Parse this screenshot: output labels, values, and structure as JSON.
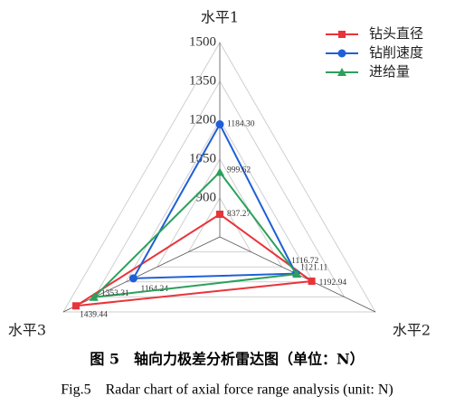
{
  "chart_data": {
    "type": "radar",
    "title": "图 5　轴向力极差分析雷达图（单位：N）",
    "subtitle": "Fig.5　Radar chart of axial force range analysis (unit: N)",
    "categories": [
      "水平1",
      "水平2",
      "水平3"
    ],
    "rlim": [
      750,
      1500
    ],
    "rticks": [
      900,
      1050,
      1200,
      1350,
      1500
    ],
    "series": [
      {
        "name": "钻头直径",
        "color": "#e8343a",
        "marker": "square",
        "values": [
          837.27,
          1192.94,
          1439.44
        ],
        "value_labels": [
          "837.27",
          "1192.94",
          "1439.44"
        ]
      },
      {
        "name": "钻削速度",
        "color": "#1f5fd6",
        "marker": "circle",
        "values": [
          1184.3,
          1116.72,
          1164.24
        ],
        "value_labels": [
          "1184.30",
          "1116.72",
          "1164.24"
        ]
      },
      {
        "name": "进给量",
        "color": "#2ca05a",
        "marker": "triangle",
        "values": [
          999.62,
          1121.11,
          1353.31
        ],
        "value_labels": [
          "999.62",
          "1121.11",
          "1353.31"
        ]
      }
    ]
  }
}
